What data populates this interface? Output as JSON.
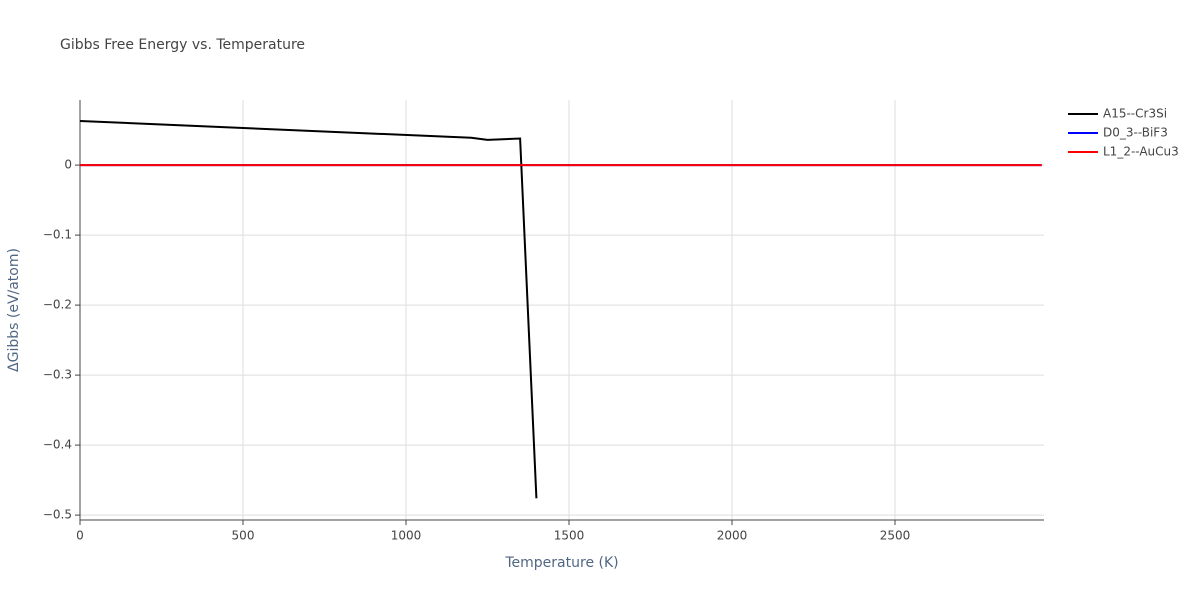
{
  "chart_data": {
    "type": "line",
    "title": "Gibbs Free Energy vs. Temperature",
    "x_label": "Temperature (K)",
    "y_label": "ΔGibbs (eV/atom)",
    "series": [
      {
        "name": "A15--Cr3Si",
        "color": "#000000",
        "x": [
          0,
          1200,
          1250,
          1350,
          1400
        ],
        "values": [
          0.063,
          0.039,
          0.036,
          0.038,
          -0.476
        ]
      },
      {
        "name": "D0_3--BiF3",
        "color": "#0000ff",
        "x": [
          0,
          2950
        ],
        "values": [
          0,
          0
        ]
      },
      {
        "name": "L1_2--AuCu3",
        "color": "#ff0000",
        "x": [
          0,
          2950
        ],
        "values": [
          0,
          0
        ]
      }
    ],
    "xlim": [
      0,
      2957
    ],
    "xticks": [
      0,
      500,
      1000,
      1500,
      2000,
      2500
    ],
    "ylim": [
      -0.507,
      0.093
    ],
    "yticks": [
      {
        "value": -0.5,
        "label": "−0.5"
      },
      {
        "value": -0.4,
        "label": "−0.4"
      },
      {
        "value": -0.3,
        "label": "−0.3"
      },
      {
        "value": -0.2,
        "label": "−0.2"
      },
      {
        "value": -0.1,
        "label": "−0.1"
      },
      0
    ],
    "grid": true,
    "legend": "right"
  }
}
